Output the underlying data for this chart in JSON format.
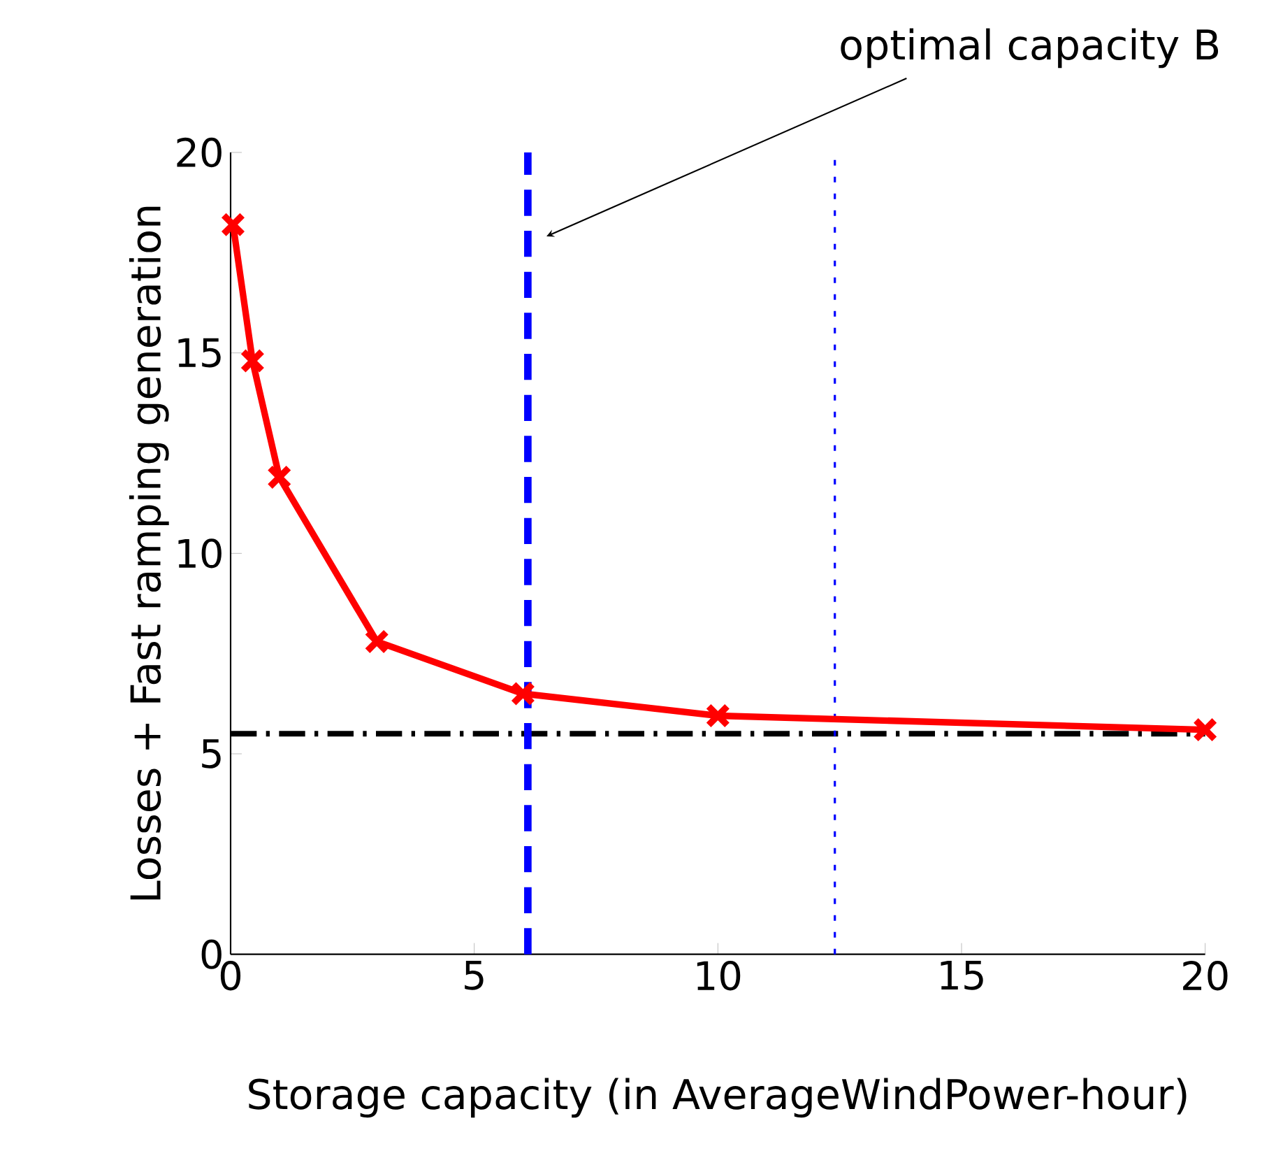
{
  "chart_data": {
    "type": "line",
    "xlabel": "Storage capacity (in AverageWindPower-hour)",
    "ylabel": "Losses + Fast ramping generation",
    "x": [
      0.05,
      0.45,
      1,
      3,
      6,
      10,
      20
    ],
    "series": [
      {
        "color": "#ff0000",
        "values": [
          18.2,
          14.8,
          11.9,
          7.8,
          6.5,
          5.95,
          5.6
        ]
      }
    ],
    "marker": "cross",
    "line_style": "solid",
    "grid": false,
    "xlim": [
      0,
      20
    ],
    "ylim": [
      0,
      20
    ],
    "xticks": [
      0,
      5,
      10,
      15,
      20
    ],
    "yticks": [
      0,
      5,
      10,
      15,
      20
    ],
    "ref_lines": [
      {
        "axis": "y",
        "value": 5.5,
        "color": "#000000",
        "line_style": "dashdot"
      },
      {
        "axis": "x",
        "value": 6.1,
        "color": "#0000ff",
        "line_style": "dashed"
      },
      {
        "axis": "x",
        "value": 12.4,
        "color": "#0000ff",
        "line_style": "dotted"
      }
    ],
    "annotations": [
      "optimal capacity B"
    ]
  }
}
